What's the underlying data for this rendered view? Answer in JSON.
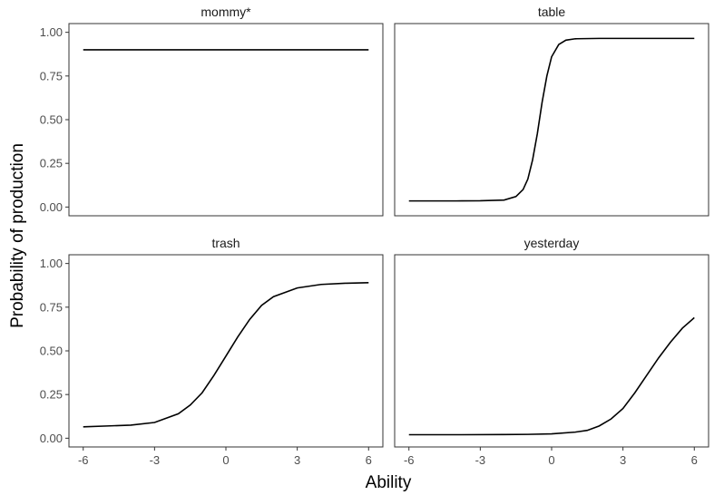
{
  "chart_data": {
    "type": "line",
    "xlabel": "Ability",
    "ylabel": "Probability of production",
    "xlim": [
      -6.6,
      6.6
    ],
    "ylim": [
      -0.05,
      1.05
    ],
    "x_ticks": [
      -6,
      -3,
      0,
      3,
      6
    ],
    "x_tick_labels": [
      "-6",
      "-3",
      "0",
      "3",
      "6"
    ],
    "y_ticks": [
      0,
      0.25,
      0.5,
      0.75,
      1
    ],
    "y_tick_labels": [
      "0.00",
      "0.25",
      "0.50",
      "0.75",
      "1.00"
    ],
    "grid": false,
    "facets": [
      {
        "title": "mommy*",
        "x": [
          -6,
          -3,
          0,
          3,
          6
        ],
        "y": [
          0.9,
          0.9,
          0.9,
          0.9,
          0.9
        ]
      },
      {
        "title": "table",
        "x": [
          -6,
          -4,
          -3,
          -2,
          -1.5,
          -1.2,
          -1,
          -0.8,
          -0.6,
          -0.4,
          -0.2,
          0,
          0.3,
          0.6,
          1,
          2,
          3,
          6
        ],
        "y": [
          0.035,
          0.035,
          0.036,
          0.04,
          0.06,
          0.1,
          0.16,
          0.27,
          0.42,
          0.6,
          0.75,
          0.86,
          0.93,
          0.955,
          0.963,
          0.965,
          0.965,
          0.965
        ]
      },
      {
        "title": "trash",
        "x": [
          -6,
          -5,
          -4,
          -3,
          -2,
          -1.5,
          -1,
          -0.5,
          0,
          0.5,
          1,
          1.5,
          2,
          3,
          4,
          5,
          6
        ],
        "y": [
          0.065,
          0.07,
          0.075,
          0.09,
          0.14,
          0.19,
          0.26,
          0.36,
          0.47,
          0.58,
          0.68,
          0.76,
          0.81,
          0.86,
          0.88,
          0.887,
          0.89
        ]
      },
      {
        "title": "yesterday",
        "x": [
          -6,
          -4,
          -2,
          -1,
          0,
          1,
          1.5,
          2,
          2.5,
          3,
          3.5,
          4,
          4.5,
          5,
          5.5,
          6
        ],
        "y": [
          0.02,
          0.02,
          0.021,
          0.022,
          0.025,
          0.035,
          0.045,
          0.07,
          0.11,
          0.17,
          0.26,
          0.36,
          0.46,
          0.55,
          0.63,
          0.69
        ]
      }
    ]
  }
}
